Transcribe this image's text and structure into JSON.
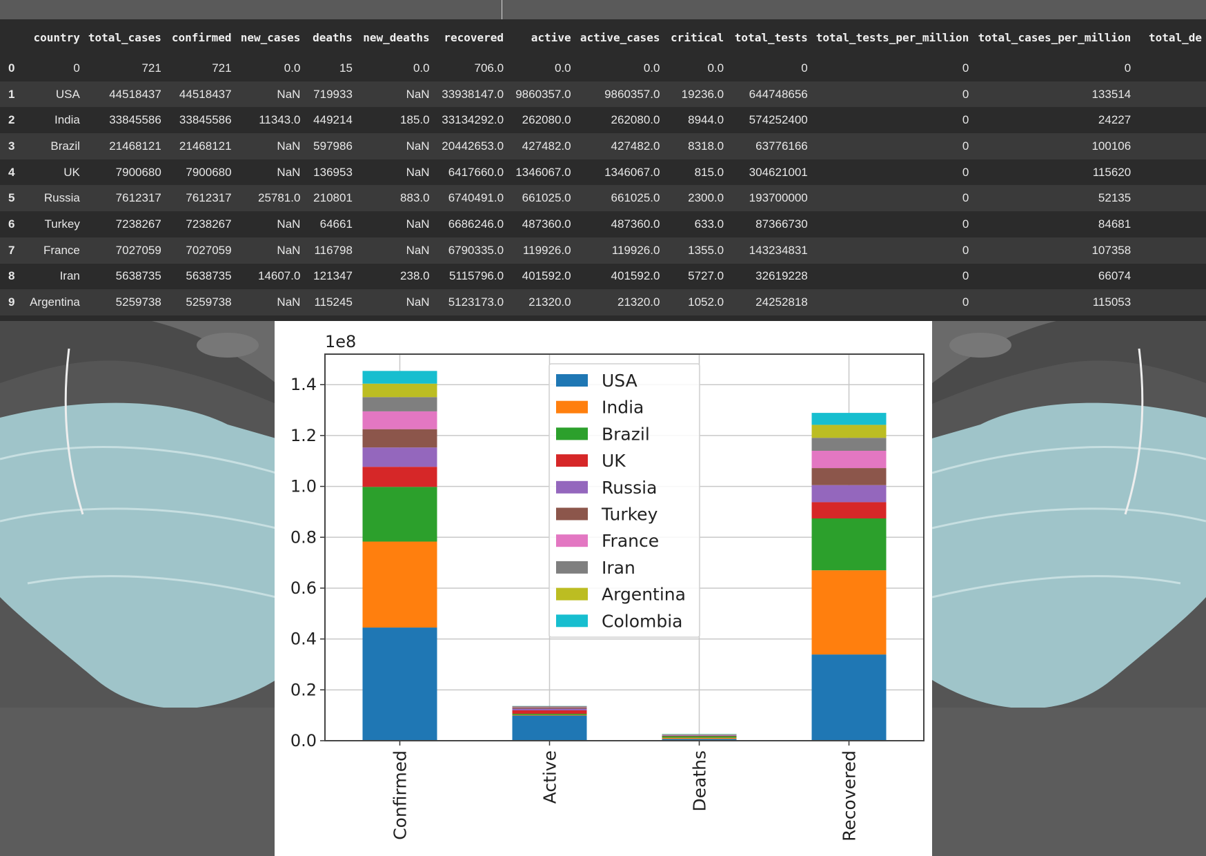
{
  "table": {
    "columns": [
      "",
      "country",
      "total_cases",
      "confirmed",
      "new_cases",
      "deaths",
      "new_deaths",
      "recovered",
      "active",
      "active_cases",
      "critical",
      "total_tests",
      "total_tests_per_million",
      "total_cases_per_million",
      "total_de"
    ],
    "rows": [
      [
        "0",
        "0",
        "721",
        "721",
        "0.0",
        "15",
        "0.0",
        "706.0",
        "0.0",
        "0.0",
        "0.0",
        "0",
        "0",
        "0",
        ""
      ],
      [
        "1",
        "USA",
        "44518437",
        "44518437",
        "NaN",
        "719933",
        "NaN",
        "33938147.0",
        "9860357.0",
        "9860357.0",
        "19236.0",
        "644748656",
        "0",
        "133514",
        ""
      ],
      [
        "2",
        "India",
        "33845586",
        "33845586",
        "11343.0",
        "449214",
        "185.0",
        "33134292.0",
        "262080.0",
        "262080.0",
        "8944.0",
        "574252400",
        "0",
        "24227",
        ""
      ],
      [
        "3",
        "Brazil",
        "21468121",
        "21468121",
        "NaN",
        "597986",
        "NaN",
        "20442653.0",
        "427482.0",
        "427482.0",
        "8318.0",
        "63776166",
        "0",
        "100106",
        ""
      ],
      [
        "4",
        "UK",
        "7900680",
        "7900680",
        "NaN",
        "136953",
        "NaN",
        "6417660.0",
        "1346067.0",
        "1346067.0",
        "815.0",
        "304621001",
        "0",
        "115620",
        ""
      ],
      [
        "5",
        "Russia",
        "7612317",
        "7612317",
        "25781.0",
        "210801",
        "883.0",
        "6740491.0",
        "661025.0",
        "661025.0",
        "2300.0",
        "193700000",
        "0",
        "52135",
        ""
      ],
      [
        "6",
        "Turkey",
        "7238267",
        "7238267",
        "NaN",
        "64661",
        "NaN",
        "6686246.0",
        "487360.0",
        "487360.0",
        "633.0",
        "87366730",
        "0",
        "84681",
        ""
      ],
      [
        "7",
        "France",
        "7027059",
        "7027059",
        "NaN",
        "116798",
        "NaN",
        "6790335.0",
        "119926.0",
        "119926.0",
        "1355.0",
        "143234831",
        "0",
        "107358",
        ""
      ],
      [
        "8",
        "Iran",
        "5638735",
        "5638735",
        "14607.0",
        "121347",
        "238.0",
        "5115796.0",
        "401592.0",
        "401592.0",
        "5727.0",
        "32619228",
        "0",
        "66074",
        ""
      ],
      [
        "9",
        "Argentina",
        "5259738",
        "5259738",
        "NaN",
        "115245",
        "NaN",
        "5123173.0",
        "21320.0",
        "21320.0",
        "1052.0",
        "24252818",
        "0",
        "115053",
        ""
      ]
    ]
  },
  "chart_data": {
    "type": "bar",
    "stacked": true,
    "categories": [
      "Confirmed",
      "Active",
      "Deaths",
      "Recovered"
    ],
    "offset_label": "1e8",
    "ylim": [
      0,
      1.52
    ],
    "yticks": [
      "0.0",
      "0.2",
      "0.4",
      "0.6",
      "0.8",
      "1.0",
      "1.2",
      "1.4"
    ],
    "grid": true,
    "legend_position": "top-center",
    "series": [
      {
        "name": "USA",
        "color": "#1f77b4",
        "values": [
          0.445,
          0.099,
          0.0072,
          0.339
        ]
      },
      {
        "name": "India",
        "color": "#ff7f0e",
        "values": [
          0.338,
          0.0026,
          0.0045,
          0.331
        ]
      },
      {
        "name": "Brazil",
        "color": "#2ca02c",
        "values": [
          0.215,
          0.0043,
          0.006,
          0.204
        ]
      },
      {
        "name": "UK",
        "color": "#d62728",
        "values": [
          0.079,
          0.0135,
          0.0014,
          0.064
        ]
      },
      {
        "name": "Russia",
        "color": "#9467bd",
        "values": [
          0.076,
          0.0066,
          0.0021,
          0.067
        ]
      },
      {
        "name": "Turkey",
        "color": "#8c564b",
        "values": [
          0.072,
          0.0049,
          0.0006,
          0.067
        ]
      },
      {
        "name": "France",
        "color": "#e377c2",
        "values": [
          0.07,
          0.0012,
          0.0012,
          0.068
        ]
      },
      {
        "name": "Iran",
        "color": "#7f7f7f",
        "values": [
          0.056,
          0.004,
          0.0012,
          0.051
        ]
      },
      {
        "name": "Argentina",
        "color": "#bcbd22",
        "values": [
          0.053,
          0.0002,
          0.0012,
          0.051
        ]
      },
      {
        "name": "Colombia",
        "color": "#17becf",
        "values": [
          0.05,
          0.0005,
          0.0013,
          0.047
        ]
      }
    ]
  }
}
